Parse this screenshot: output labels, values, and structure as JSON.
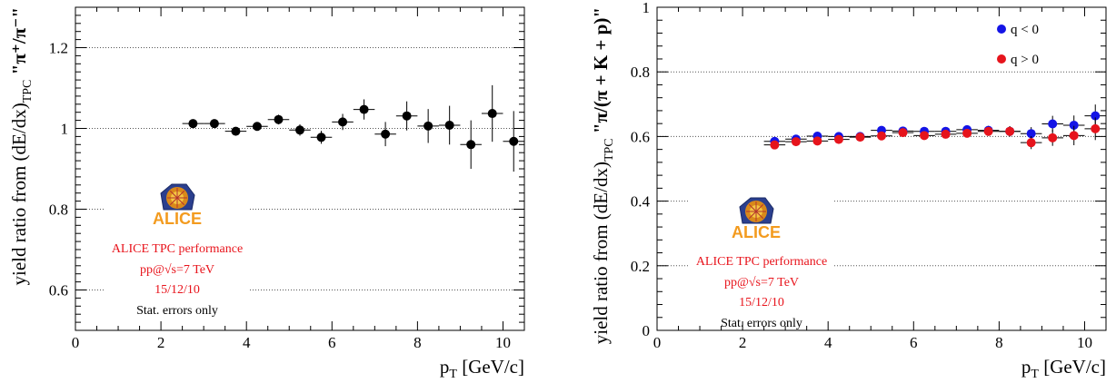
{
  "chart_data": [
    {
      "type": "scatter",
      "xlabel": "p",
      "xlabel_sub": "T",
      "xlabel_unit": "[GeV/c]",
      "ylabel_main": "yield ratio from (dE/dx)",
      "ylabel_sub": "TPC",
      "ylabel_quote": "\"π⁺/π⁻\"",
      "xlim": [
        0,
        10.5
      ],
      "ylim": [
        0.5,
        1.3
      ],
      "xticks": [
        "0",
        "2",
        "4",
        "6",
        "8",
        "10"
      ],
      "yticks": [
        "0.6",
        "0.8",
        "1",
        "1.2"
      ],
      "grid_y": [
        0.6,
        0.8,
        1.0,
        1.2
      ],
      "annotation": {
        "logo_text": "ALICE",
        "line1": "ALICE TPC performance",
        "line2": "pp@√s=7 TeV",
        "line3": "15/12/10",
        "line4": "Stat. errors only"
      },
      "series": [
        {
          "color": "#000000",
          "points": [
            {
              "x": 2.75,
              "y": 1.012,
              "err": 0.008
            },
            {
              "x": 3.25,
              "y": 1.012,
              "err": 0.008
            },
            {
              "x": 3.75,
              "y": 0.993,
              "err": 0.009
            },
            {
              "x": 4.25,
              "y": 1.005,
              "err": 0.01
            },
            {
              "x": 4.75,
              "y": 1.022,
              "err": 0.012
            },
            {
              "x": 5.25,
              "y": 0.996,
              "err": 0.014
            },
            {
              "x": 5.75,
              "y": 0.978,
              "err": 0.016
            },
            {
              "x": 6.25,
              "y": 1.016,
              "err": 0.02
            },
            {
              "x": 6.75,
              "y": 1.047,
              "err": 0.025
            },
            {
              "x": 7.25,
              "y": 0.986,
              "err": 0.03
            },
            {
              "x": 7.75,
              "y": 1.031,
              "err": 0.036
            },
            {
              "x": 8.25,
              "y": 1.006,
              "err": 0.042
            },
            {
              "x": 8.75,
              "y": 1.008,
              "err": 0.048
            },
            {
              "x": 9.25,
              "y": 0.96,
              "err": 0.06
            },
            {
              "x": 9.75,
              "y": 1.037,
              "err": 0.07
            },
            {
              "x": 10.25,
              "y": 0.968,
              "err": 0.075
            }
          ]
        }
      ]
    },
    {
      "type": "scatter",
      "xlabel": "p",
      "xlabel_sub": "T",
      "xlabel_unit": "[GeV/c]",
      "ylabel_main": "yield ratio from (dE/dx)",
      "ylabel_sub": "TPC",
      "ylabel_quote": "\"π/(π + K + p)\"",
      "xlim": [
        0,
        10.5
      ],
      "ylim": [
        0,
        1
      ],
      "xticks": [
        "0",
        "2",
        "4",
        "6",
        "8",
        "10"
      ],
      "yticks": [
        "0",
        "0.2",
        "0.4",
        "0.6",
        "0.8",
        "1"
      ],
      "grid_y": [
        0.2,
        0.4,
        0.6,
        0.8
      ],
      "legend": {
        "position": "top-right"
      },
      "annotation": {
        "logo_text": "ALICE",
        "line1": "ALICE TPC performance",
        "line2": "pp@√s=7 TeV",
        "line3": "15/12/10",
        "line4": "Stat. errors only"
      },
      "series": [
        {
          "name": "q < 0",
          "color": "#1414e6",
          "points": [
            {
              "x": 2.75,
              "y": 0.585,
              "err": 0.008
            },
            {
              "x": 3.25,
              "y": 0.592,
              "err": 0.008
            },
            {
              "x": 3.75,
              "y": 0.601,
              "err": 0.008
            },
            {
              "x": 4.25,
              "y": 0.6,
              "err": 0.008
            },
            {
              "x": 4.75,
              "y": 0.6,
              "err": 0.008
            },
            {
              "x": 5.25,
              "y": 0.619,
              "err": 0.009
            },
            {
              "x": 5.75,
              "y": 0.617,
              "err": 0.009
            },
            {
              "x": 6.25,
              "y": 0.616,
              "err": 0.01
            },
            {
              "x": 6.75,
              "y": 0.616,
              "err": 0.011
            },
            {
              "x": 7.25,
              "y": 0.621,
              "err": 0.012
            },
            {
              "x": 7.75,
              "y": 0.619,
              "err": 0.014
            },
            {
              "x": 8.25,
              "y": 0.616,
              "err": 0.016
            },
            {
              "x": 8.75,
              "y": 0.609,
              "err": 0.02
            },
            {
              "x": 9.25,
              "y": 0.639,
              "err": 0.025
            },
            {
              "x": 9.75,
              "y": 0.635,
              "err": 0.03
            },
            {
              "x": 10.25,
              "y": 0.664,
              "err": 0.035
            }
          ]
        },
        {
          "name": "q > 0",
          "color": "#e6141c",
          "points": [
            {
              "x": 2.75,
              "y": 0.574,
              "err": 0.008
            },
            {
              "x": 3.25,
              "y": 0.584,
              "err": 0.008
            },
            {
              "x": 3.75,
              "y": 0.586,
              "err": 0.008
            },
            {
              "x": 4.25,
              "y": 0.591,
              "err": 0.008
            },
            {
              "x": 4.75,
              "y": 0.598,
              "err": 0.008
            },
            {
              "x": 5.25,
              "y": 0.602,
              "err": 0.009
            },
            {
              "x": 5.75,
              "y": 0.612,
              "err": 0.009
            },
            {
              "x": 6.25,
              "y": 0.603,
              "err": 0.01
            },
            {
              "x": 6.75,
              "y": 0.607,
              "err": 0.011
            },
            {
              "x": 7.25,
              "y": 0.61,
              "err": 0.012
            },
            {
              "x": 7.75,
              "y": 0.616,
              "err": 0.014
            },
            {
              "x": 8.25,
              "y": 0.616,
              "err": 0.016
            },
            {
              "x": 8.75,
              "y": 0.581,
              "err": 0.02
            },
            {
              "x": 9.25,
              "y": 0.596,
              "err": 0.025
            },
            {
              "x": 9.75,
              "y": 0.603,
              "err": 0.03
            },
            {
              "x": 10.25,
              "y": 0.624,
              "err": 0.035
            }
          ]
        }
      ]
    }
  ]
}
